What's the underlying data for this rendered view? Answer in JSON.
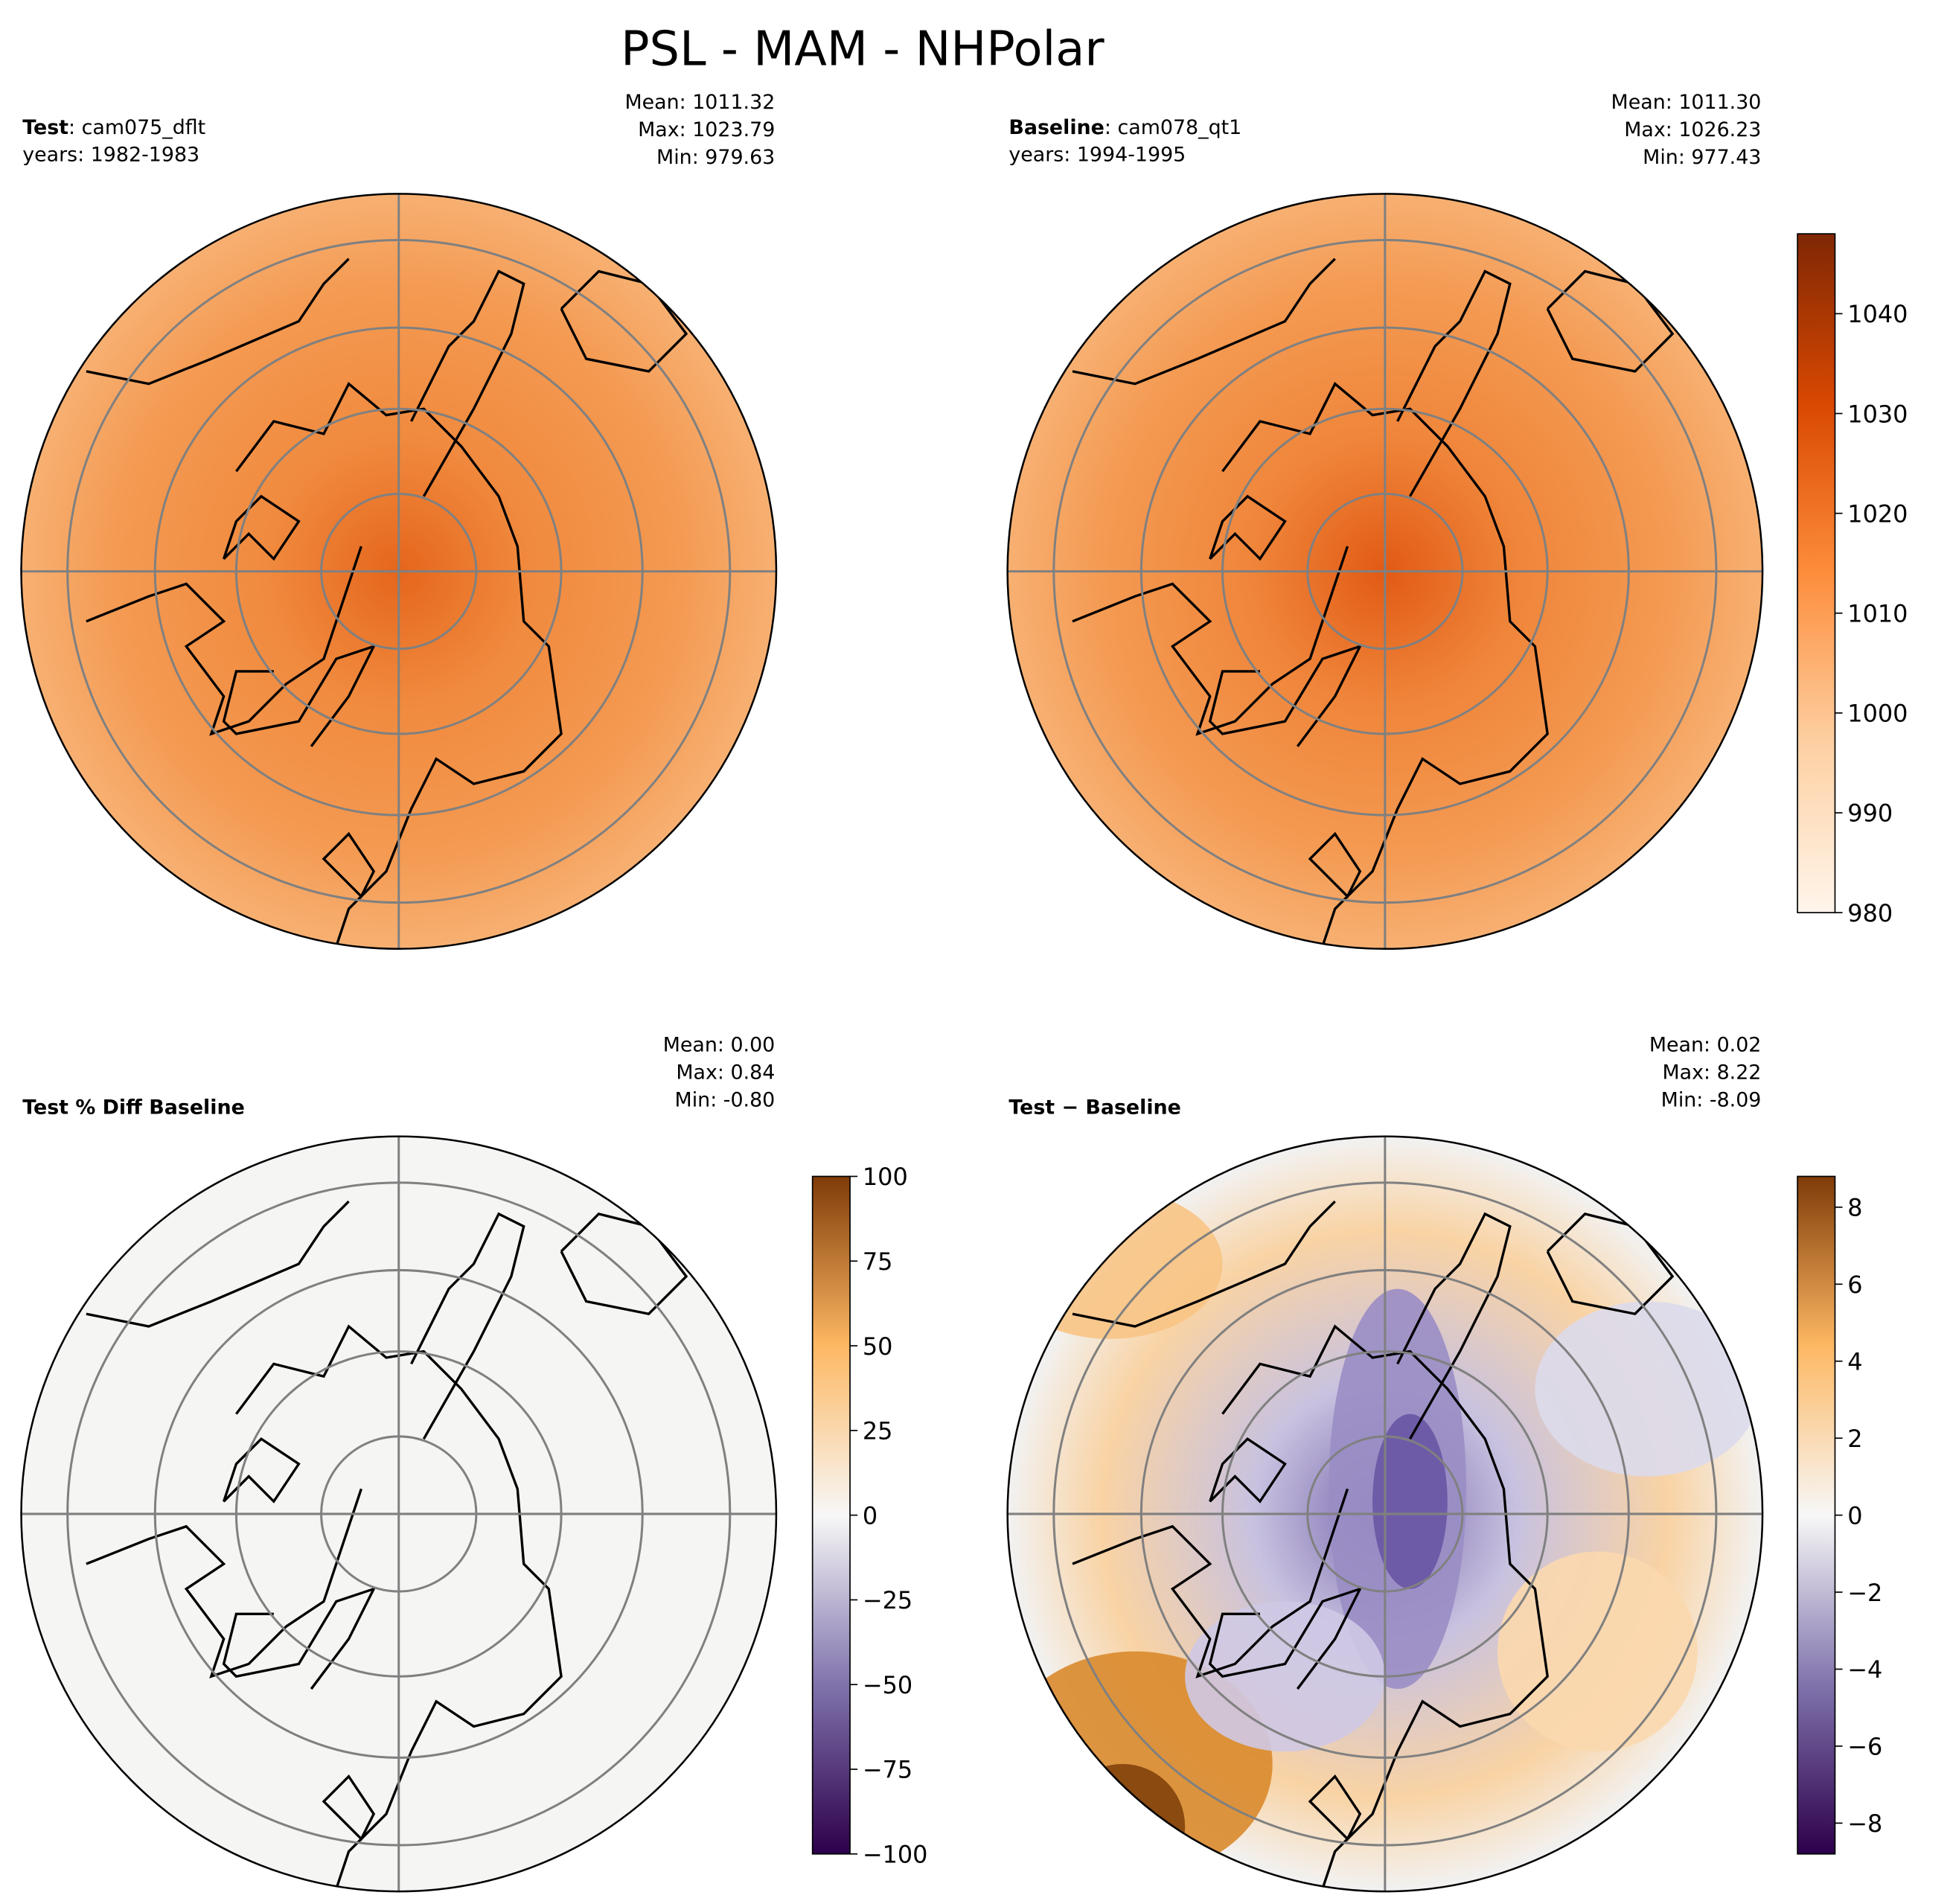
{
  "chart_data": {
    "type": "heatmap",
    "title": "PSL - MAM - NHPolar",
    "panels": [
      {
        "id": "test",
        "title_bold": "Test",
        "title_rest": ": cam075_dflt",
        "subtitle": "years: 1982-1983",
        "stats": [
          "Mean: 1011.32",
          "Max: 1023.79",
          "Min: 979.63"
        ],
        "field": {
          "center": "#e5661c",
          "mid": "#f08a3e",
          "edge": "#f49a52",
          "light": "#f7b072"
        }
      },
      {
        "id": "baseline",
        "title_bold": "Baseline",
        "title_rest": ": cam078_qt1",
        "subtitle": "years: 1994-1995",
        "stats": [
          "Mean: 1011.30",
          "Max: 1026.23",
          "Min: 977.43"
        ],
        "field": {
          "center": "#e25a14",
          "mid": "#ef853a",
          "edge": "#f49a52",
          "light": "#f7b072"
        }
      },
      {
        "id": "pctdiff",
        "title_bold": "Test % Diff Baseline",
        "title_rest": "",
        "subtitle": "",
        "stats": [
          "Mean:  0.00",
          "Max:  0.84",
          "Min: -0.80"
        ],
        "field": {
          "center": "#f5f5f4",
          "mid": "#f5f5f4",
          "edge": "#f5f5f4",
          "light": "#f5f5f4"
        }
      },
      {
        "id": "diff",
        "title_bold": "Test − Baseline",
        "title_rest": "",
        "subtitle": "",
        "stats": [
          "Mean:  0.02",
          "Max:  8.22",
          "Min: -8.09"
        ],
        "field": {
          "center": "#7a68ad",
          "mid": "#c8c2e0",
          "edge": "#f9d3a4",
          "light": "#f2f2f2"
        }
      }
    ],
    "colorbars": [
      {
        "for": "test+baseline",
        "range": [
          980,
          1048
        ],
        "ticks": [
          980,
          990,
          1000,
          1010,
          1020,
          1030,
          1040
        ],
        "tick_labels": [
          "980",
          "990",
          "1000",
          "1010",
          "1020",
          "1030",
          "1040"
        ],
        "colors": [
          "#fff5eb",
          "#fdd0a2",
          "#fd8d3c",
          "#d94801",
          "#7f2704"
        ]
      },
      {
        "for": "pctdiff",
        "range": [
          -100,
          100
        ],
        "ticks": [
          -100,
          -75,
          -50,
          -25,
          0,
          25,
          50,
          75,
          100
        ],
        "tick_labels": [
          "−100",
          "−75",
          "−50",
          "−25",
          "0",
          "25",
          "50",
          "75",
          "100"
        ],
        "colors": [
          "#2d004b",
          "#8073ac",
          "#f7f7f7",
          "#fdb863",
          "#7f3b08"
        ]
      },
      {
        "for": "diff",
        "range": [
          -8.8,
          8.8
        ],
        "ticks": [
          -8,
          -6,
          -4,
          -2,
          0,
          2,
          4,
          6,
          8
        ],
        "tick_labels": [
          "−8",
          "−6",
          "−4",
          "−2",
          "0",
          "2",
          "4",
          "6",
          "8"
        ],
        "colors": [
          "#2d004b",
          "#8073ac",
          "#f7f7f7",
          "#fdb863",
          "#7f3b08"
        ]
      }
    ]
  }
}
